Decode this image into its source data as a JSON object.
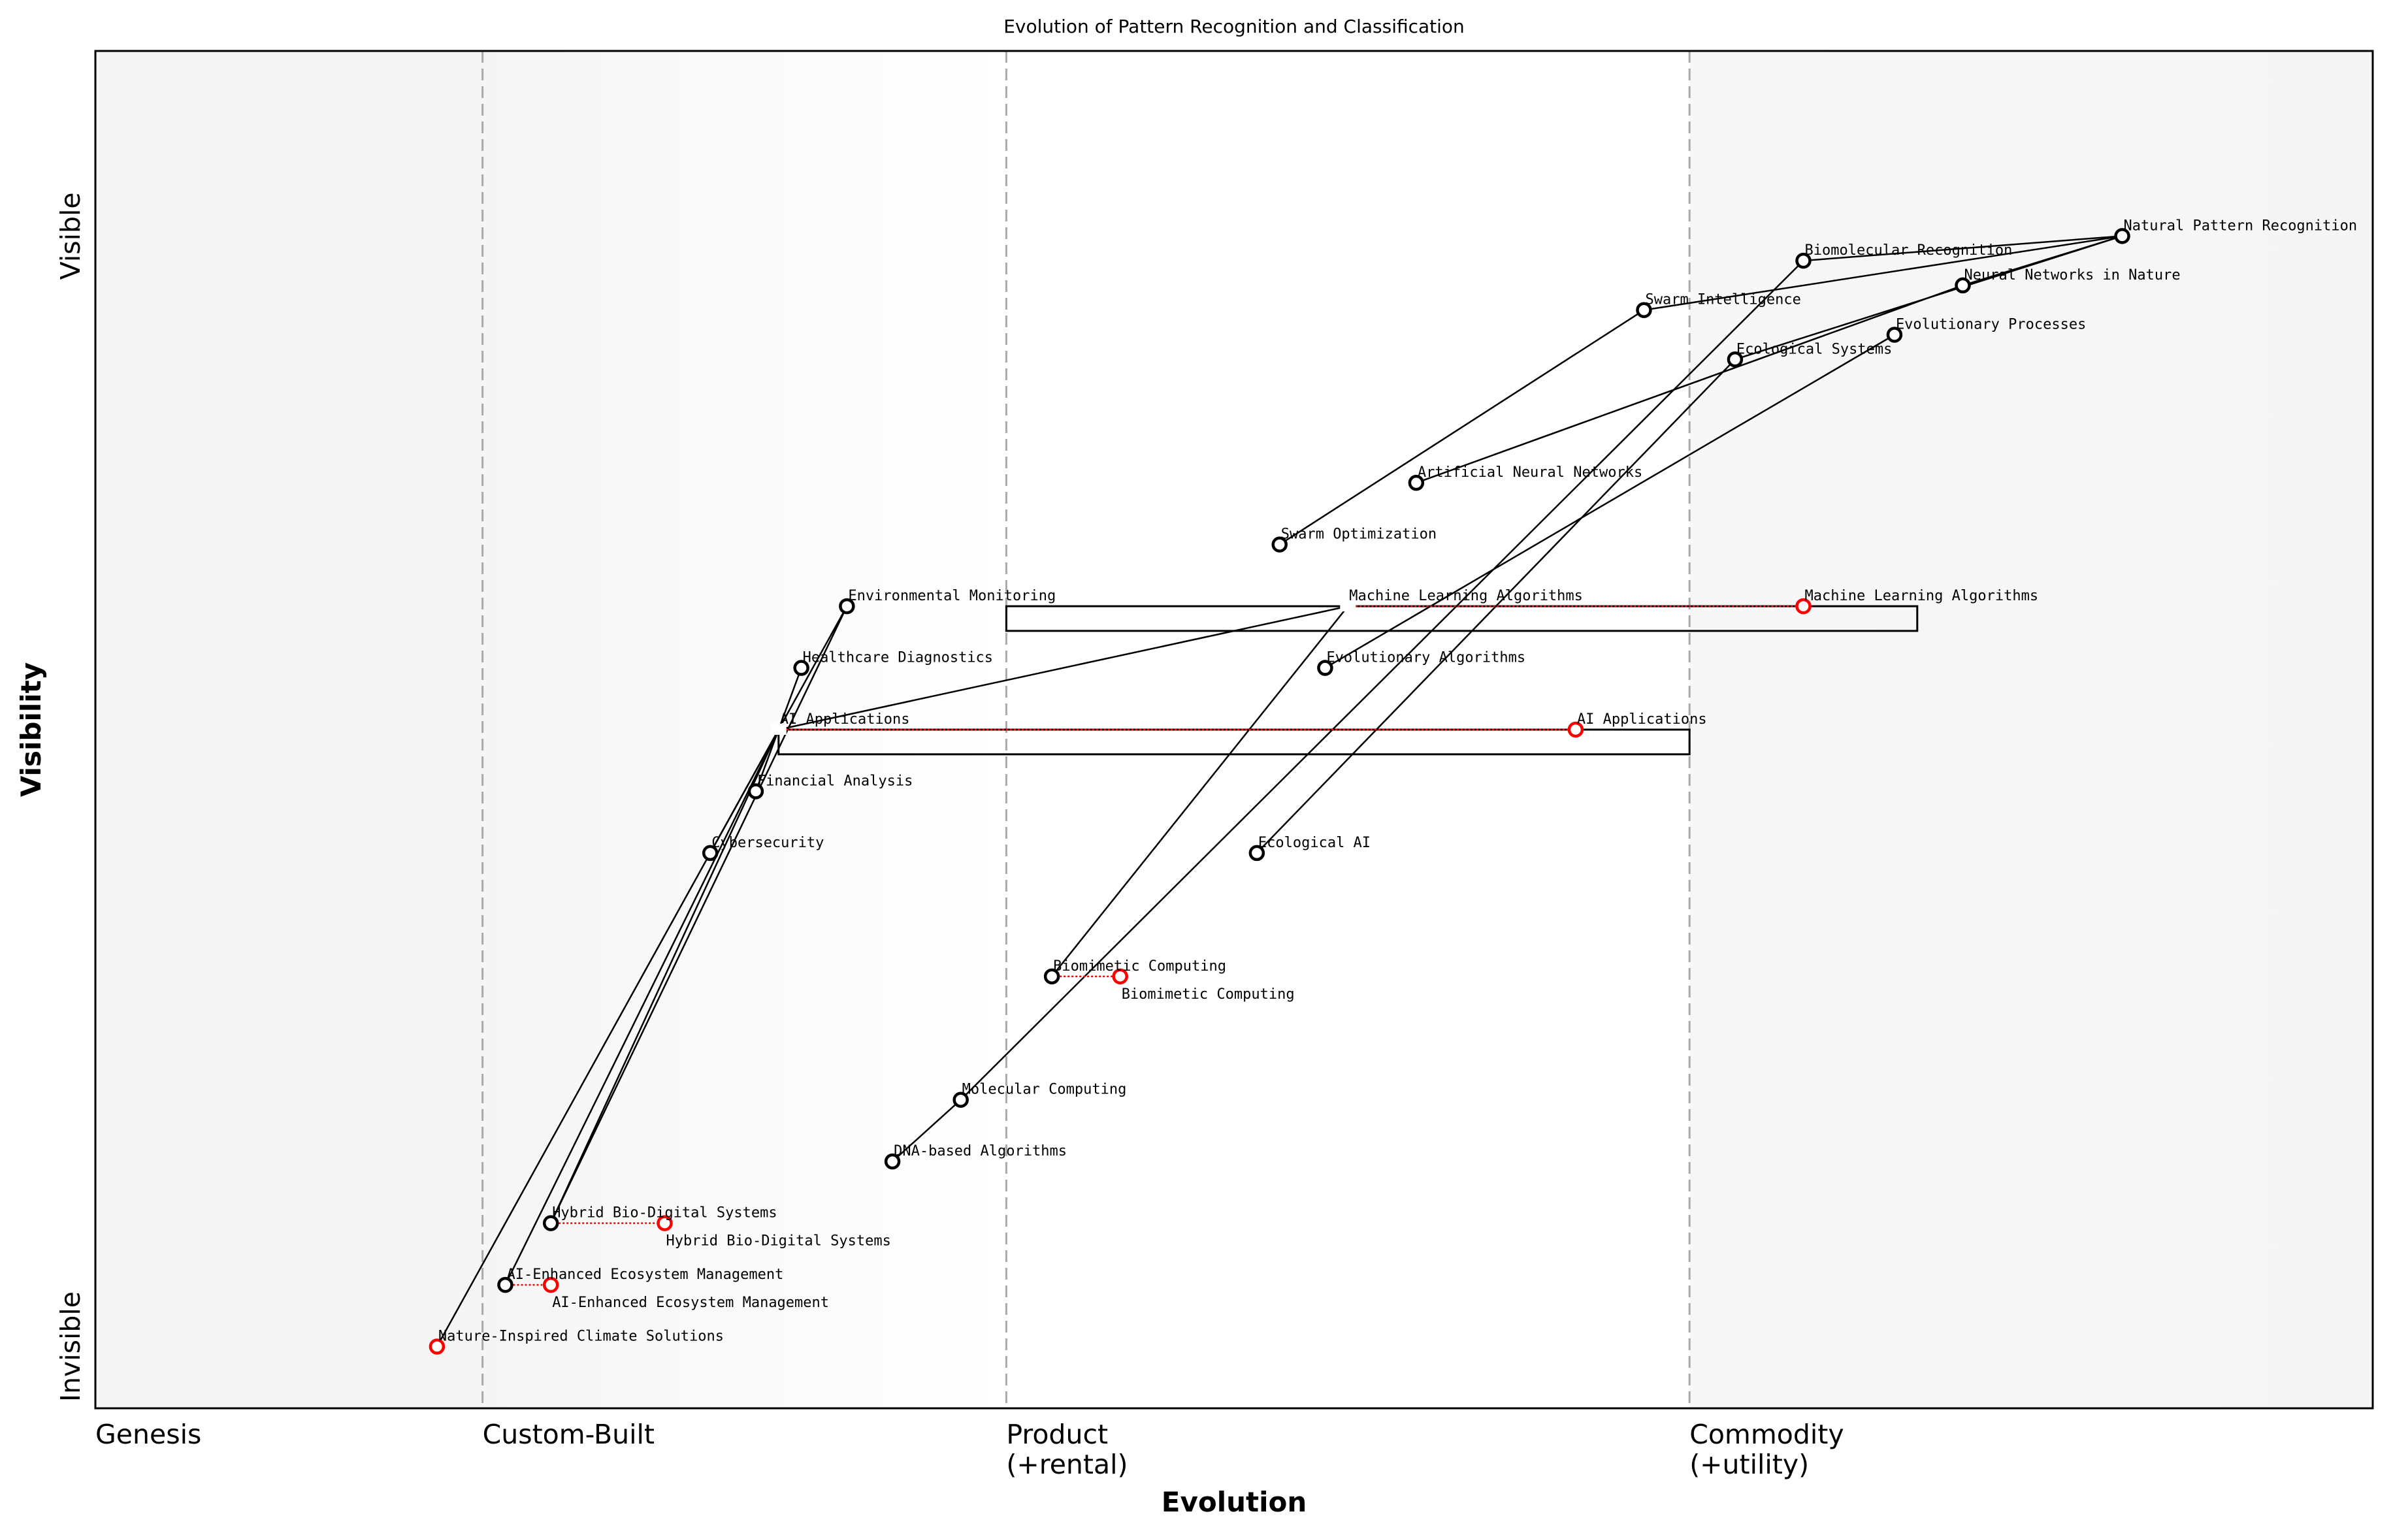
{
  "chart_data": {
    "type": "scatter",
    "subtype": "wardley-map",
    "title": "Evolution of Pattern Recognition and Classification",
    "xlabel": "Evolution",
    "ylabel": "Visibility",
    "xlim": [
      0,
      1
    ],
    "ylim": [
      0,
      1.1
    ],
    "grid": false,
    "x_ticks": [
      {
        "value": 0.0,
        "label": "Genesis"
      },
      {
        "value": 0.17,
        "label": "Custom-Built"
      },
      {
        "value": 0.4,
        "label": "Product\n(+rental)"
      },
      {
        "value": 0.7,
        "label": "Commodity\n(+utility)"
      }
    ],
    "stage_dividers": [
      0.17,
      0.4,
      0.7
    ],
    "y_ticks": [
      {
        "value": 0.05,
        "label": "Invisible"
      },
      {
        "value": 0.95,
        "label": "Visible"
      }
    ],
    "colors": {
      "node": "#000000",
      "evolution": "#ff0000",
      "divider": "#aaaaaa",
      "zone": "#f5f5f5"
    },
    "nodes": [
      {
        "name": "Natural Pattern Recognition",
        "x": 0.89,
        "y": 0.95
      },
      {
        "name": "Biomolecular Recognition",
        "x": 0.75,
        "y": 0.93
      },
      {
        "name": "Neural Networks in Nature",
        "x": 0.82,
        "y": 0.91
      },
      {
        "name": "Swarm Intelligence",
        "x": 0.68,
        "y": 0.89
      },
      {
        "name": "Evolutionary Processes",
        "x": 0.79,
        "y": 0.87
      },
      {
        "name": "Ecological Systems",
        "x": 0.72,
        "y": 0.85
      },
      {
        "name": "Artificial Neural Networks",
        "x": 0.58,
        "y": 0.75
      },
      {
        "name": "Swarm Optimization",
        "x": 0.52,
        "y": 0.7
      },
      {
        "name": "Environmental Monitoring",
        "x": 0.33,
        "y": 0.65
      },
      {
        "name": "Machine Learning Algorithms",
        "x": 0.55,
        "y": 0.65,
        "evolve": 0.75,
        "inertia_range": [
          0.4,
          0.8
        ],
        "hidden_marker": true
      },
      {
        "name": "Healthcare Diagnostics",
        "x": 0.31,
        "y": 0.6
      },
      {
        "name": "Evolutionary Algorithms",
        "x": 0.54,
        "y": 0.6
      },
      {
        "name": "AI Applications",
        "x": 0.3,
        "y": 0.55,
        "evolve": 0.65,
        "inertia_range": [
          0.3,
          0.7
        ],
        "hidden_marker": true
      },
      {
        "name": "Financial Analysis",
        "x": 0.29,
        "y": 0.5
      },
      {
        "name": "Cybersecurity",
        "x": 0.27,
        "y": 0.45
      },
      {
        "name": "Ecological AI",
        "x": 0.51,
        "y": 0.45
      },
      {
        "name": "Biomimetic Computing",
        "x": 0.42,
        "y": 0.35,
        "evolve": 0.45
      },
      {
        "name": "Molecular Computing",
        "x": 0.38,
        "y": 0.25
      },
      {
        "name": "DNA-based Algorithms",
        "x": 0.35,
        "y": 0.2
      },
      {
        "name": "Hybrid Bio-Digital Systems",
        "x": 0.2,
        "y": 0.15,
        "evolve": 0.25
      },
      {
        "name": "AI-Enhanced Ecosystem Management",
        "x": 0.18,
        "y": 0.1,
        "evolve": 0.2
      },
      {
        "name": "Nature-Inspired Climate Solutions",
        "x": 0.15,
        "y": 0.05,
        "evolve": 0.15
      }
    ],
    "edges": [
      [
        "Natural Pattern Recognition",
        "Biomolecular Recognition"
      ],
      [
        "Natural Pattern Recognition",
        "Swarm Intelligence"
      ],
      [
        "Natural Pattern Recognition",
        "Neural Networks in Nature"
      ],
      [
        "Natural Pattern Recognition",
        "Ecological Systems"
      ],
      [
        "Neural Networks in Nature",
        "Artificial Neural Networks"
      ],
      [
        "Evolutionary Processes",
        "Evolutionary Algorithms"
      ],
      [
        "Swarm Intelligence",
        "Swarm Optimization"
      ],
      [
        "Biomolecular Recognition",
        "Molecular Computing"
      ],
      [
        "Ecological Systems",
        "Ecological AI"
      ],
      [
        "Machine Learning Algorithms",
        "Biomimetic Computing"
      ],
      [
        "Molecular Computing",
        "DNA-based Algorithms"
      ],
      [
        "AI Applications",
        "Machine Learning Algorithms"
      ],
      [
        "AI Applications",
        "Environmental Monitoring"
      ],
      [
        "AI Applications",
        "Healthcare Diagnostics"
      ],
      [
        "AI Applications",
        "Financial Analysis"
      ],
      [
        "AI Applications",
        "Cybersecurity"
      ],
      [
        "AI Applications",
        "Hybrid Bio-Digital Systems"
      ],
      [
        "AI Applications",
        "AI-Enhanced Ecosystem Management"
      ],
      [
        "AI Applications",
        "Nature-Inspired Climate Solutions"
      ],
      [
        "Environmental Monitoring",
        "Hybrid Bio-Digital Systems"
      ]
    ]
  }
}
